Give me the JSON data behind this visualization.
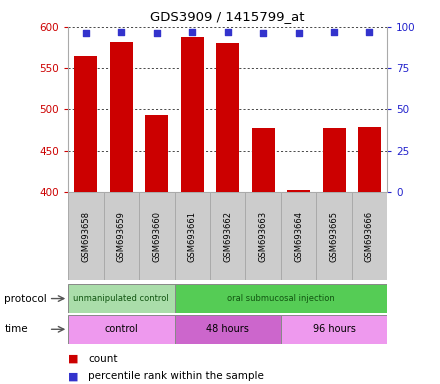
{
  "title": "GDS3909 / 1415799_at",
  "samples": [
    "GSM693658",
    "GSM693659",
    "GSM693660",
    "GSM693661",
    "GSM693662",
    "GSM693663",
    "GSM693664",
    "GSM693665",
    "GSM693666"
  ],
  "count_values": [
    565,
    582,
    493,
    588,
    581,
    478,
    403,
    478,
    479
  ],
  "percentile_values": [
    96,
    97,
    96,
    97,
    97,
    96,
    96,
    97,
    97
  ],
  "ylim_left": [
    400,
    600
  ],
  "ylim_right": [
    0,
    100
  ],
  "yticks_left": [
    400,
    450,
    500,
    550,
    600
  ],
  "yticks_right": [
    0,
    25,
    50,
    75,
    100
  ],
  "bar_color": "#cc0000",
  "marker_color": "#3333cc",
  "bar_width": 0.65,
  "protocol_groups": [
    {
      "label": "unmanipulated control",
      "start": 0,
      "end": 3,
      "color": "#aaddaa"
    },
    {
      "label": "oral submucosal injection",
      "start": 3,
      "end": 9,
      "color": "#55cc55"
    }
  ],
  "time_groups": [
    {
      "label": "control",
      "start": 0,
      "end": 3,
      "color": "#ee99ee"
    },
    {
      "label": "48 hours",
      "start": 3,
      "end": 6,
      "color": "#cc66cc"
    },
    {
      "label": "96 hours",
      "start": 6,
      "end": 9,
      "color": "#ee99ee"
    }
  ],
  "legend_count_label": "count",
  "legend_percentile_label": "percentile rank within the sample",
  "protocol_label": "protocol",
  "time_label": "time",
  "left_tick_color": "#cc0000",
  "right_tick_color": "#2222cc",
  "sample_box_color": "#cccccc",
  "sample_box_edge": "#aaaaaa"
}
